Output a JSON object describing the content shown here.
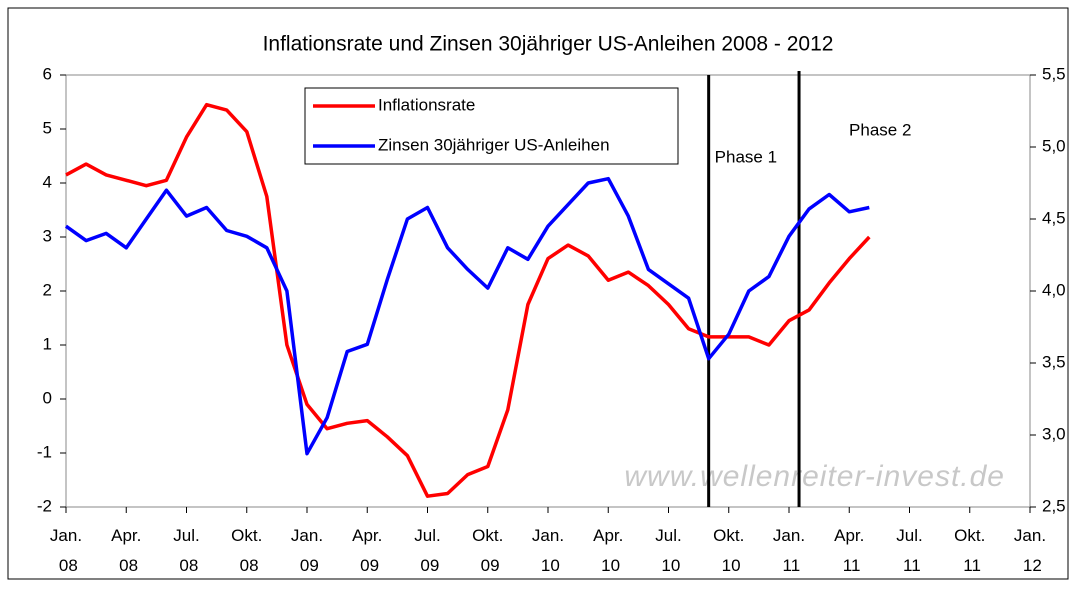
{
  "chart_data": {
    "type": "line",
    "title": "Inflationsrate und Zinsen 30jähriger US-Anleihen 2008 - 2012",
    "categories": [
      "Jan. 08",
      null,
      null,
      "Apr. 08",
      null,
      null,
      "Jul. 08",
      null,
      null,
      "Okt. 08",
      null,
      null,
      "Jan. 09",
      null,
      null,
      "Apr. 09",
      null,
      null,
      "Jul. 09",
      null,
      null,
      "Okt. 09",
      null,
      null,
      "Jan. 10",
      null,
      null,
      "Apr. 10",
      null,
      null,
      "Jul. 10",
      null,
      null,
      "Okt. 10",
      null,
      null,
      "Jan. 11",
      null,
      null,
      "Apr. 11",
      null,
      null,
      "Jul. 11",
      null,
      null,
      "Okt. 11",
      null,
      null,
      "Jan. 12"
    ],
    "series": [
      {
        "name": "Inflationsrate",
        "color": "#ff0000",
        "values": [
          4.15,
          4.35,
          4.15,
          4.05,
          3.95,
          4.05,
          4.85,
          5.45,
          5.35,
          4.95,
          3.75,
          1.0,
          -0.1,
          -0.55,
          -0.45,
          -0.4,
          -0.7,
          -1.05,
          -1.8,
          -1.75,
          -1.4,
          -1.25,
          -0.2,
          1.75,
          2.6,
          2.85,
          2.65,
          2.2,
          2.35,
          2.1,
          1.75,
          1.3,
          1.15,
          1.15,
          1.15,
          1.0,
          1.45,
          1.65,
          2.15,
          2.6,
          3.0,
          null,
          null,
          null,
          null,
          null,
          null,
          null,
          null
        ]
      },
      {
        "name": "Zinsen 30jähriger US-Anleihen",
        "color": "#0000ff",
        "axis": "y2",
        "values": [
          4.45,
          4.35,
          4.4,
          4.3,
          4.5,
          4.7,
          4.52,
          4.58,
          4.42,
          4.38,
          4.3,
          4.0,
          2.87,
          3.12,
          3.58,
          3.63,
          4.08,
          4.5,
          4.58,
          4.3,
          4.15,
          4.02,
          4.3,
          4.22,
          4.45,
          4.6,
          4.75,
          4.78,
          4.52,
          4.15,
          4.05,
          3.95,
          3.53,
          3.7,
          4.0,
          4.1,
          4.38,
          4.57,
          4.67,
          4.55,
          4.58,
          null,
          null,
          null,
          null,
          null,
          null,
          null,
          null
        ]
      }
    ],
    "ylim": [
      -2,
      6
    ],
    "yticks": [
      -2,
      -1,
      0,
      1,
      2,
      3,
      4,
      5,
      6
    ],
    "y2lim": [
      2.5,
      5.5
    ],
    "y2ticks": [
      {
        "value": 2.5,
        "label": "2,5"
      },
      {
        "value": 3.0,
        "label": "3,0"
      },
      {
        "value": 3.5,
        "label": "3,5"
      },
      {
        "value": 4.0,
        "label": "4,0"
      },
      {
        "value": 4.5,
        "label": "4,5"
      },
      {
        "value": 5.0,
        "label": "5,0"
      },
      {
        "value": 5.5,
        "label": "5,5"
      }
    ],
    "annotations": [
      {
        "text": "Phase 1",
        "x": 32
      },
      {
        "text": "Phase 2",
        "x": 36.5
      },
      {
        "text": "www.wellenreiter-invest.de"
      }
    ],
    "legend": "upper center",
    "grid": false
  }
}
